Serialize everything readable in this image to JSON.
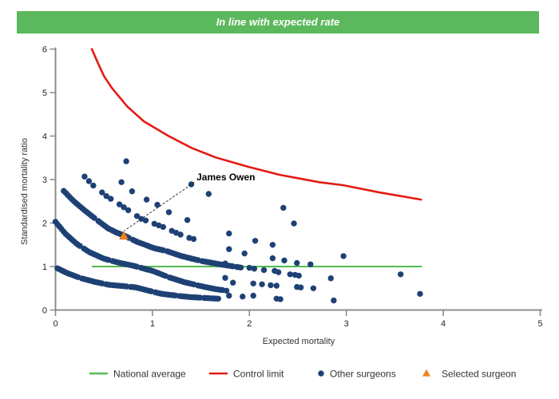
{
  "banner": {
    "text": "In line with expected rate",
    "bg_color": "#5cb85c",
    "text_color": "#ffffff"
  },
  "chart_data": {
    "type": "scatter",
    "title": "In line with expected rate",
    "xlabel": "Expected mortality",
    "ylabel": "Standardised mortality ratio",
    "xlim": [
      0,
      5
    ],
    "ylim": [
      0,
      6
    ],
    "grid": false,
    "x_tick_labels": [
      "0",
      "1",
      "2",
      "3",
      "4",
      "5"
    ],
    "y_tick_labels": [
      "0",
      "1",
      "2",
      "3",
      "4",
      "5",
      "6"
    ],
    "axis_color": "#8c8c8c",
    "series": [
      {
        "name": "National average",
        "type": "line",
        "color": "#54bb50",
        "y": 1.0,
        "x_start": 0.375,
        "x_end": 3.78
      },
      {
        "name": "Control limit",
        "type": "line",
        "color": "#e41a13",
        "points": [
          [
            0.375,
            6.0
          ],
          [
            0.45,
            5.62
          ],
          [
            0.5,
            5.38
          ],
          [
            0.58,
            5.11
          ],
          [
            0.74,
            4.68
          ],
          [
            0.91,
            4.34
          ],
          [
            1.16,
            4.01
          ],
          [
            1.4,
            3.73
          ],
          [
            1.65,
            3.51
          ],
          [
            1.98,
            3.3
          ],
          [
            2.31,
            3.11
          ],
          [
            2.72,
            2.94
          ],
          [
            2.97,
            2.87
          ],
          [
            3.35,
            2.7
          ],
          [
            3.77,
            2.54
          ]
        ]
      },
      {
        "name": "Other surgeons",
        "type": "scatter",
        "color": "#1e4175",
        "marker": "circle",
        "marker_radius": 3.7,
        "dense_bands": [
          {
            "step": 0.045,
            "on": 3,
            "off": 1,
            "control_points": [
              [
                0.3,
                3.07
              ],
              [
                0.38,
                2.88
              ],
              [
                0.45,
                2.76
              ],
              [
                0.53,
                2.61
              ],
              [
                0.6,
                2.52
              ],
              [
                0.74,
                2.31
              ],
              [
                0.88,
                2.1
              ],
              [
                1.0,
                2.0
              ],
              [
                1.11,
                1.91
              ],
              [
                1.24,
                1.78
              ],
              [
                1.36,
                1.67
              ],
              [
                1.45,
                1.62
              ]
            ]
          },
          {
            "step": 0.021,
            "on": 16,
            "off": 1,
            "control_points": [
              [
                0.085,
                2.74
              ],
              [
                0.18,
                2.52
              ],
              [
                0.29,
                2.31
              ],
              [
                0.41,
                2.1
              ],
              [
                0.54,
                1.88
              ],
              [
                0.62,
                1.79
              ],
              [
                0.71,
                1.71
              ],
              [
                0.84,
                1.57
              ],
              [
                1.02,
                1.42
              ],
              [
                1.14,
                1.36
              ],
              [
                1.3,
                1.24
              ],
              [
                1.5,
                1.13
              ],
              [
                1.7,
                1.05
              ],
              [
                1.93,
                0.97
              ]
            ]
          },
          {
            "step": 0.021,
            "on": 13,
            "off": 1,
            "control_points": [
              [
                0.0,
                2.03
              ],
              [
                0.1,
                1.76
              ],
              [
                0.22,
                1.52
              ],
              [
                0.35,
                1.33
              ],
              [
                0.5,
                1.18
              ],
              [
                0.65,
                1.09
              ],
              [
                0.8,
                1.02
              ],
              [
                1.0,
                0.9
              ],
              [
                1.16,
                0.76
              ],
              [
                1.33,
                0.64
              ],
              [
                1.5,
                0.55
              ],
              [
                1.65,
                0.48
              ],
              [
                1.78,
                0.44
              ]
            ]
          },
          {
            "step": 0.021,
            "on": 11,
            "off": 1,
            "control_points": [
              [
                0.02,
                0.96
              ],
              [
                0.12,
                0.85
              ],
              [
                0.25,
                0.74
              ],
              [
                0.4,
                0.65
              ],
              [
                0.55,
                0.58
              ],
              [
                0.7,
                0.55
              ],
              [
                0.83,
                0.52
              ],
              [
                0.95,
                0.45
              ],
              [
                1.1,
                0.37
              ],
              [
                1.25,
                0.33
              ],
              [
                1.38,
                0.3
              ],
              [
                1.52,
                0.28
              ],
              [
                1.68,
                0.26
              ]
            ]
          }
        ],
        "points": [
          [
            0.68,
            2.94
          ],
          [
            0.79,
            2.73
          ],
          [
            0.94,
            2.54
          ],
          [
            1.05,
            2.42
          ],
          [
            1.17,
            2.25
          ],
          [
            1.36,
            2.07
          ],
          [
            0.73,
            3.42
          ],
          [
            1.4,
            2.89
          ],
          [
            1.58,
            2.67
          ],
          [
            1.79,
            1.76
          ],
          [
            2.06,
            1.59
          ],
          [
            1.79,
            1.4
          ],
          [
            1.95,
            1.3
          ],
          [
            2.24,
            1.5
          ],
          [
            2.35,
            2.35
          ],
          [
            2.46,
            1.99
          ],
          [
            2.24,
            1.19
          ],
          [
            2.36,
            1.14
          ],
          [
            2.49,
            1.08
          ],
          [
            2.63,
            1.05
          ],
          [
            2.97,
            1.24
          ],
          [
            1.75,
            1.07
          ],
          [
            2.0,
            0.97
          ],
          [
            2.05,
            0.95
          ],
          [
            2.15,
            0.92
          ],
          [
            2.26,
            0.9
          ],
          [
            2.3,
            0.87
          ],
          [
            2.42,
            0.82
          ],
          [
            2.47,
            0.81
          ],
          [
            2.51,
            0.79
          ],
          [
            2.84,
            0.73
          ],
          [
            1.75,
            0.74
          ],
          [
            1.83,
            0.63
          ],
          [
            2.04,
            0.61
          ],
          [
            2.13,
            0.59
          ],
          [
            2.22,
            0.57
          ],
          [
            2.28,
            0.56
          ],
          [
            2.49,
            0.53
          ],
          [
            2.53,
            0.52
          ],
          [
            2.66,
            0.5
          ],
          [
            1.79,
            0.33
          ],
          [
            1.93,
            0.31
          ],
          [
            2.04,
            0.33
          ],
          [
            2.28,
            0.26
          ],
          [
            2.32,
            0.25
          ],
          [
            2.87,
            0.22
          ],
          [
            3.56,
            0.82
          ],
          [
            3.76,
            0.37
          ]
        ]
      },
      {
        "name": "Selected surgeon",
        "type": "scatter",
        "color": "#f08220",
        "marker": "triangle",
        "x": 0.705,
        "y": 1.71
      }
    ],
    "annotation": {
      "text": "James Owen",
      "text_x": 1.455,
      "text_y": 2.98,
      "line_from": [
        1.433,
        2.936
      ],
      "line_to": [
        0.708,
        1.82
      ],
      "line_color": "#222222"
    },
    "legend_position": "bottom"
  },
  "legend": {
    "items": [
      {
        "label": "National average",
        "type": "line",
        "color": "#54bb50"
      },
      {
        "label": "Control limit",
        "type": "line",
        "color": "#e41a13"
      },
      {
        "label": "Other surgeons",
        "type": "dot",
        "color": "#1e4175"
      },
      {
        "label": "Selected surgeon",
        "type": "triangle",
        "color": "#f08220"
      }
    ]
  }
}
